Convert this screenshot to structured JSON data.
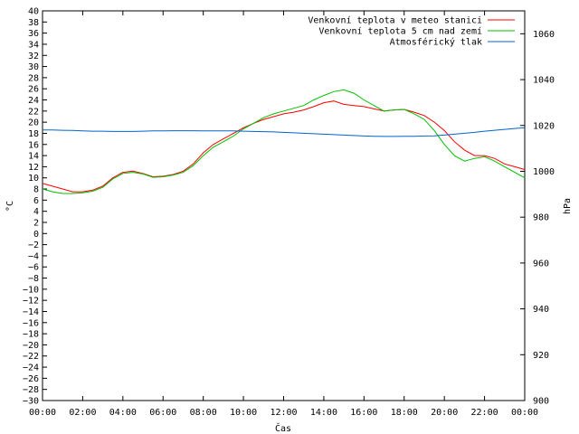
{
  "chart_data": {
    "type": "line",
    "xlabel": "Čas",
    "ylabel_left": "°C",
    "ylabel_right": "hPa",
    "xlim": [
      0,
      24
    ],
    "ylim_left": [
      -30,
      40
    ],
    "ylim_right": [
      900,
      1070
    ],
    "grid": false,
    "legend_position": "top-right",
    "x_tick_labels": [
      "00:00",
      "02:00",
      "04:00",
      "06:00",
      "08:00",
      "10:00",
      "12:00",
      "14:00",
      "16:00",
      "18:00",
      "20:00",
      "22:00",
      "00:00"
    ],
    "y_left_ticks": [
      -30,
      -28,
      -26,
      -24,
      -22,
      -20,
      -18,
      -16,
      -14,
      -12,
      -10,
      -8,
      -6,
      -4,
      -2,
      0,
      2,
      4,
      6,
      8,
      10,
      12,
      14,
      16,
      18,
      20,
      22,
      24,
      26,
      28,
      30,
      32,
      34,
      36,
      38,
      40
    ],
    "y_right_ticks": [
      900,
      920,
      940,
      960,
      980,
      1000,
      1020,
      1040,
      1060
    ],
    "series": [
      {
        "name": "Venkovní teplota v meteo stanici",
        "color": "#ff0000",
        "axis": "left",
        "x": [
          0,
          0.5,
          1,
          1.5,
          2,
          2.5,
          3,
          3.5,
          4,
          4.5,
          5,
          5.5,
          6,
          6.5,
          7,
          7.5,
          8,
          8.5,
          9,
          9.5,
          10,
          10.5,
          11,
          11.5,
          12,
          12.5,
          13,
          13.5,
          14,
          14.5,
          15,
          15.5,
          16,
          16.5,
          17,
          17.5,
          18,
          18.5,
          19,
          19.5,
          20,
          20.5,
          21,
          21.5,
          22,
          22.5,
          23,
          23.5,
          24
        ],
        "y": [
          9,
          8.5,
          8,
          7.5,
          7.5,
          7.8,
          8.5,
          10,
          11,
          11.2,
          10.8,
          10.2,
          10.3,
          10.6,
          11.2,
          12.5,
          14.5,
          16,
          17,
          18,
          19,
          19.8,
          20.5,
          21,
          21.5,
          21.8,
          22.2,
          22.8,
          23.5,
          23.8,
          23.2,
          23,
          22.8,
          22.4,
          22,
          22.2,
          22.3,
          21.8,
          21.2,
          20,
          18.5,
          16.5,
          15,
          14,
          14,
          13.5,
          12.5,
          12,
          11.5
        ]
      },
      {
        "name": "Venkovní teplota 5 cm nad zemí",
        "color": "#00c000",
        "axis": "left",
        "x": [
          0,
          0.5,
          1,
          1.5,
          2,
          2.5,
          3,
          3.5,
          4,
          4.5,
          5,
          5.5,
          6,
          6.5,
          7,
          7.5,
          8,
          8.5,
          9,
          9.5,
          10,
          10.5,
          11,
          11.5,
          12,
          12.5,
          13,
          13.5,
          14,
          14.5,
          15,
          15.5,
          16,
          16.5,
          17,
          17.5,
          18,
          18.5,
          19,
          19.5,
          20,
          20.5,
          21,
          21.5,
          22,
          22.5,
          23,
          23.5,
          24
        ],
        "y": [
          8,
          7.5,
          7.2,
          7.2,
          7.3,
          7.6,
          8.3,
          9.8,
          10.8,
          11,
          10.7,
          10.1,
          10.2,
          10.5,
          11,
          12.2,
          14,
          15.5,
          16.5,
          17.5,
          18.8,
          19.8,
          20.8,
          21.5,
          22,
          22.5,
          23,
          24,
          24.8,
          25.5,
          25.8,
          25.2,
          24,
          23,
          22,
          22.2,
          22.3,
          21.5,
          20.5,
          18.5,
          16,
          14,
          13,
          13.5,
          13.8,
          13,
          12,
          11,
          10
        ]
      },
      {
        "name": "Atmosférický tlak",
        "color": "#0066cc",
        "axis": "right",
        "x": [
          0,
          0.5,
          1,
          1.5,
          2,
          2.5,
          3,
          3.5,
          4,
          4.5,
          5,
          5.5,
          6,
          6.5,
          7,
          7.5,
          8,
          8.5,
          9,
          9.5,
          10,
          10.5,
          11,
          11.5,
          12,
          12.5,
          13,
          13.5,
          14,
          14.5,
          15,
          15.5,
          16,
          16.5,
          17,
          17.5,
          18,
          18.5,
          19,
          19.5,
          20,
          20.5,
          21,
          21.5,
          22,
          22.5,
          23,
          23.5,
          24
        ],
        "y": [
          1018,
          1018,
          1017.9,
          1017.8,
          1017.6,
          1017.5,
          1017.5,
          1017.4,
          1017.4,
          1017.4,
          1017.5,
          1017.6,
          1017.6,
          1017.7,
          1017.7,
          1017.7,
          1017.6,
          1017.6,
          1017.6,
          1017.6,
          1017.5,
          1017.4,
          1017.3,
          1017.2,
          1017,
          1016.8,
          1016.6,
          1016.4,
          1016.2,
          1016,
          1015.8,
          1015.6,
          1015.4,
          1015.3,
          1015.2,
          1015.2,
          1015.3,
          1015.3,
          1015.4,
          1015.5,
          1015.8,
          1016.2,
          1016.6,
          1017,
          1017.5,
          1017.9,
          1018.3,
          1018.7,
          1019
        ]
      }
    ]
  }
}
